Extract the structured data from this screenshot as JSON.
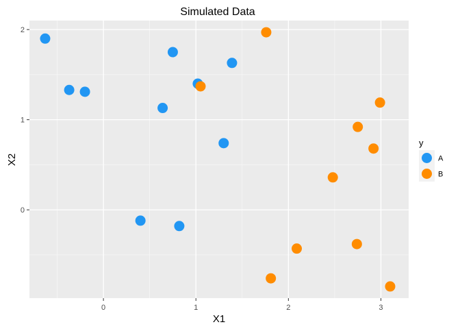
{
  "chart_data": {
    "type": "scatter",
    "title": "Simulated Data",
    "xlabel": "X1",
    "ylabel": "X2",
    "xlim": [
      -0.8,
      3.3
    ],
    "ylim": [
      -0.98,
      2.1
    ],
    "x_ticks": [
      0,
      1,
      2,
      3
    ],
    "y_ticks": [
      0,
      1,
      2
    ],
    "grid": true,
    "legend_title": "y",
    "legend_position": "right",
    "series": [
      {
        "name": "A",
        "color": "#2196f3",
        "points": [
          {
            "x": -0.63,
            "y": 1.9
          },
          {
            "x": -0.37,
            "y": 1.33
          },
          {
            "x": -0.2,
            "y": 1.31
          },
          {
            "x": 0.4,
            "y": -0.12
          },
          {
            "x": 0.64,
            "y": 1.13
          },
          {
            "x": 0.75,
            "y": 1.75
          },
          {
            "x": 0.82,
            "y": -0.18
          },
          {
            "x": 1.02,
            "y": 1.4
          },
          {
            "x": 1.3,
            "y": 0.74
          },
          {
            "x": 1.39,
            "y": 1.63
          }
        ]
      },
      {
        "name": "B",
        "color": "#ff8c00",
        "points": [
          {
            "x": 1.05,
            "y": 1.37
          },
          {
            "x": 1.76,
            "y": 1.97
          },
          {
            "x": 1.81,
            "y": -0.76
          },
          {
            "x": 2.09,
            "y": -0.43
          },
          {
            "x": 2.48,
            "y": 0.36
          },
          {
            "x": 2.74,
            "y": -0.38
          },
          {
            "x": 2.75,
            "y": 0.92
          },
          {
            "x": 2.92,
            "y": 0.68
          },
          {
            "x": 2.99,
            "y": 1.19
          },
          {
            "x": 3.1,
            "y": -0.85
          }
        ]
      }
    ]
  }
}
